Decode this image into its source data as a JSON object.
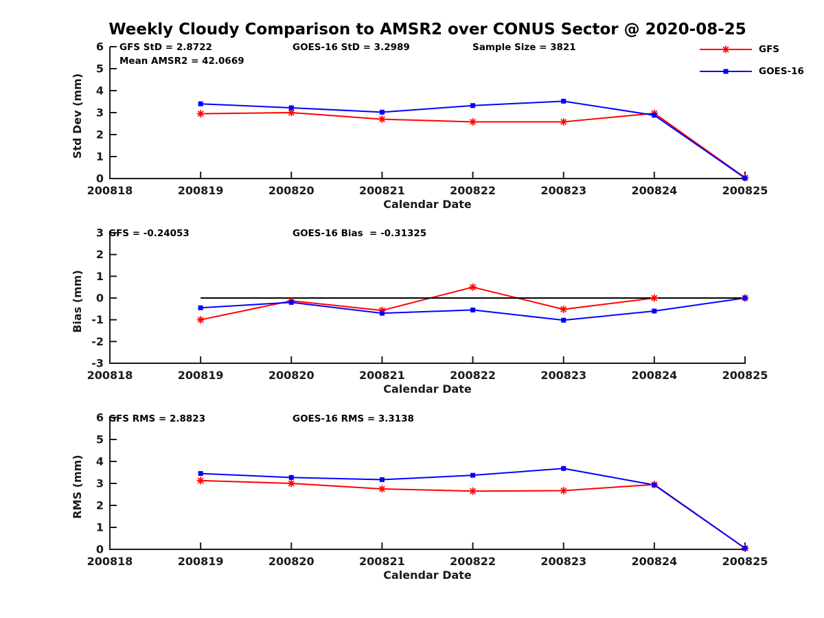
{
  "figure": {
    "title": "Weekly Cloudy Comparison to AMSR2 over CONUS Sector @ 2020-08-25",
    "background_color": "#ffffff",
    "axis_color": "#1a1a1a"
  },
  "legend": {
    "position": "top-right",
    "items": [
      {
        "label": "GFS",
        "color": "#ff0000",
        "marker": "asterisk"
      },
      {
        "label": "GOES-16",
        "color": "#0000ff",
        "marker": "square"
      }
    ]
  },
  "chart_data": [
    {
      "type": "line",
      "panel": "std-dev",
      "ylabel": "Std Dev (mm)",
      "xlabel": "Calendar Date",
      "ylim": [
        0,
        6
      ],
      "yticks": [
        "0",
        "1",
        "2",
        "3",
        "4",
        "5",
        "6"
      ],
      "categories": [
        "200818",
        "200819",
        "200820",
        "200821",
        "200822",
        "200823",
        "200824",
        "200825"
      ],
      "grid": false,
      "annotations": {
        "gfs_stat": "GFS StD = 2.8722",
        "mean_amsr2": "Mean AMSR2 = 42.0669",
        "goes_stat": "GOES-16 StD = 3.2989",
        "sample_size": "Sample Size = 3821"
      },
      "series": [
        {
          "name": "GFS",
          "color": "#ff0000",
          "marker": "asterisk",
          "values": [
            null,
            2.95,
            3.0,
            2.7,
            2.58,
            2.58,
            2.97,
            0.04
          ]
        },
        {
          "name": "GOES-16",
          "color": "#0000ff",
          "marker": "square",
          "values": [
            null,
            3.4,
            3.22,
            3.02,
            3.32,
            3.52,
            2.88,
            0.02
          ]
        }
      ]
    },
    {
      "type": "line",
      "panel": "bias",
      "ylabel": "Bias (mm)",
      "xlabel": "Calendar Date",
      "ylim": [
        -3,
        3
      ],
      "yticks": [
        "-3",
        "-2",
        "-1",
        "0",
        "1",
        "2",
        "3"
      ],
      "categories": [
        "200818",
        "200819",
        "200820",
        "200821",
        "200822",
        "200823",
        "200824",
        "200825"
      ],
      "grid": false,
      "annotations": {
        "gfs_stat": "GFS = -0.24053",
        "goes_stat": "GOES-16 Bias  = -0.31325"
      },
      "zero_line": {
        "color": "#000000",
        "y": 0,
        "from_index": 1,
        "to_index": 7
      },
      "series": [
        {
          "name": "GFS",
          "color": "#ff0000",
          "marker": "asterisk",
          "values": [
            null,
            -1.0,
            -0.13,
            -0.57,
            0.5,
            -0.52,
            0.0,
            0.0
          ]
        },
        {
          "name": "GOES-16",
          "color": "#0000ff",
          "marker": "square",
          "values": [
            null,
            -0.45,
            -0.2,
            -0.7,
            -0.55,
            -1.02,
            -0.6,
            0.0
          ]
        }
      ]
    },
    {
      "type": "line",
      "panel": "rms",
      "ylabel": "RMS (mm)",
      "xlabel": "Calendar Date",
      "ylim": [
        0,
        6
      ],
      "yticks": [
        "0",
        "1",
        "2",
        "3",
        "4",
        "5",
        "6"
      ],
      "categories": [
        "200818",
        "200819",
        "200820",
        "200821",
        "200822",
        "200823",
        "200824",
        "200825"
      ],
      "grid": false,
      "annotations": {
        "gfs_stat": "GFS RMS = 2.8823",
        "goes_stat": "GOES-16 RMS = 3.3138"
      },
      "series": [
        {
          "name": "GFS",
          "color": "#ff0000",
          "marker": "asterisk",
          "values": [
            null,
            3.13,
            3.0,
            2.75,
            2.65,
            2.67,
            2.95,
            0.05
          ]
        },
        {
          "name": "GOES-16",
          "color": "#0000ff",
          "marker": "square",
          "values": [
            null,
            3.45,
            3.27,
            3.17,
            3.37,
            3.68,
            2.93,
            0.05
          ]
        }
      ]
    }
  ]
}
